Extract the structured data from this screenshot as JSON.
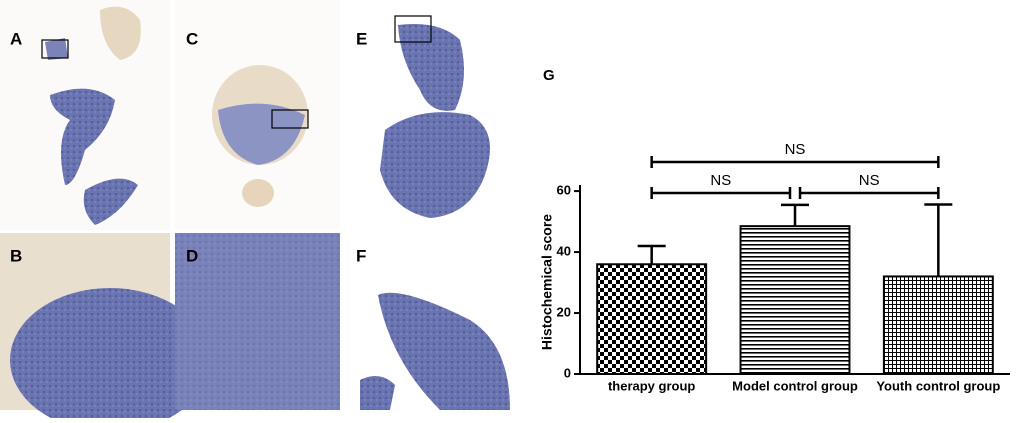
{
  "panels": [
    {
      "label": "A"
    },
    {
      "label": "B"
    },
    {
      "label": "C"
    },
    {
      "label": "D"
    },
    {
      "label": "E"
    },
    {
      "label": "F"
    }
  ],
  "chart_data": {
    "type": "bar",
    "label": "G",
    "ylabel": "Histochemical score",
    "categories": [
      "therapy group",
      "Model control group",
      "Youth control group"
    ],
    "values": [
      36,
      48.5,
      32
    ],
    "errors": [
      6,
      7,
      23.6
    ],
    "patterns": [
      "checker",
      "hlines",
      "grid"
    ],
    "color": "#000000",
    "ylim": [
      0,
      62
    ],
    "yticks": [
      0,
      20,
      40,
      60
    ],
    "annotations": [
      {
        "text": "NS",
        "from": 0,
        "to": 2
      },
      {
        "text": "NS",
        "from": 0,
        "to": 1
      },
      {
        "text": "NS",
        "from": 1,
        "to": 2
      }
    ]
  }
}
